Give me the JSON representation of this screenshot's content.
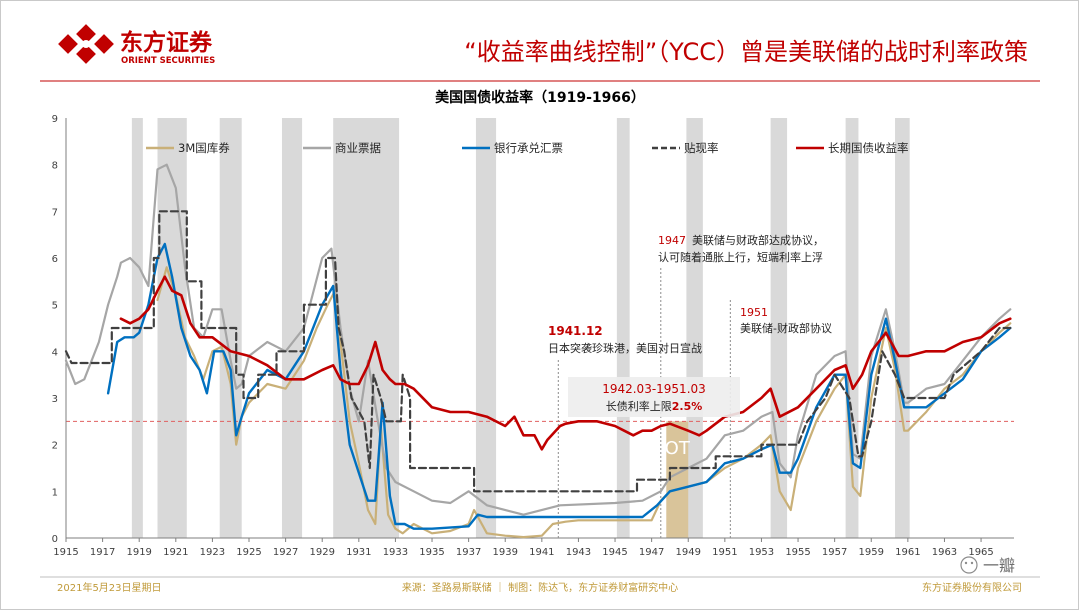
{
  "header": {
    "company_cn": "东方证券",
    "company_en": "ORIENT SECURITIES",
    "slide_title": "“收益率曲线控制”（YCC）曾是美联储的战时利率政策"
  },
  "footer": {
    "date": "2021年5月23日星期日",
    "source": "来源：圣路易斯联储 ｜ 制图：陈达飞，东方证券财富研究中心",
    "company": "东方证券股份有限公司",
    "watermark": "一瓣"
  },
  "colors": {
    "accent_red": "#c00000",
    "gold": "#c9b078",
    "gray": "#a6a6a6",
    "blue": "#0070c0",
    "dash": "#404040",
    "red": "#c00000",
    "recession": "#d9d9d9",
    "ot_fill": "#d9c49a"
  },
  "annotations": {
    "a1941_title": "1941.12",
    "a1941_text": "日本突袭珍珠港，美国对日宣战",
    "a1942_title": "1942.03-1951.03",
    "a1942_text_prefix": "长债利率上限",
    "a1942_cap": "2.5%",
    "a1947_year": "1947",
    "a1947_line1": "美联储与财政部达成协议，",
    "a1947_line2": "认可随着通胀上行，短端利率上浮",
    "a1951_year": "1951",
    "a1951_text": "美联储-财政部协议",
    "ot_label": "OT"
  },
  "chart_data": {
    "type": "line",
    "title": "美国国债收益率（1919-1966）",
    "xlabel": "",
    "ylabel": "",
    "xlim": [
      1915,
      1966.8
    ],
    "ylim": [
      0,
      9
    ],
    "x_ticks": [
      1915,
      1917,
      1919,
      1921,
      1923,
      1925,
      1927,
      1929,
      1931,
      1933,
      1935,
      1937,
      1939,
      1941,
      1943,
      1945,
      1947,
      1949,
      1951,
      1953,
      1955,
      1957,
      1959,
      1961,
      1963,
      1965
    ],
    "y_ticks": [
      0,
      1,
      2,
      3,
      4,
      5,
      6,
      7,
      8,
      9
    ],
    "reference_line": 2.5,
    "recessions": [
      [
        1918.6,
        1919.2
      ],
      [
        1920.0,
        1921.6
      ],
      [
        1923.4,
        1924.6
      ],
      [
        1926.8,
        1927.9
      ],
      [
        1929.6,
        1933.2
      ],
      [
        1937.4,
        1938.5
      ],
      [
        1945.1,
        1945.8
      ],
      [
        1948.9,
        1949.8
      ],
      [
        1953.5,
        1954.4
      ],
      [
        1957.6,
        1958.3
      ],
      [
        1960.3,
        1961.1
      ]
    ],
    "ot_band": [
      1947.8,
      1949.0
    ],
    "series": [
      {
        "name": "3M国库券",
        "key": "gold",
        "style": "solid",
        "x": [
          1920.0,
          1920.5,
          1921.0,
          1921.5,
          1922.0,
          1922.5,
          1923.0,
          1923.5,
          1924.0,
          1924.3,
          1924.6,
          1925.0,
          1926.0,
          1927.0,
          1928.0,
          1928.7,
          1929.3,
          1929.7,
          1930.0,
          1930.5,
          1931.0,
          1931.5,
          1931.9,
          1932.2,
          1932.6,
          1933.0,
          1933.4,
          1934.0,
          1935.0,
          1936.0,
          1937.0,
          1937.3,
          1938.0,
          1939.0,
          1940.0,
          1941.0,
          1941.6,
          1942.3,
          1943.0,
          1945.0,
          1947.0,
          1947.5,
          1948.0,
          1949.0,
          1950.0,
          1951.0,
          1952.0,
          1953.0,
          1953.5,
          1954.0,
          1954.6,
          1955.0,
          1956.0,
          1957.0,
          1957.6,
          1958.0,
          1958.4,
          1959.0,
          1959.8,
          1960.3,
          1960.8,
          1961.0,
          1962.0,
          1963.0,
          1964.0,
          1965.0,
          1966.0,
          1966.6
        ],
        "y": [
          5.1,
          5.8,
          5.2,
          4.3,
          3.9,
          3.4,
          4.0,
          4.1,
          3.3,
          2.0,
          2.6,
          2.9,
          3.3,
          3.2,
          3.8,
          4.5,
          5.0,
          5.3,
          4.2,
          2.5,
          1.6,
          0.6,
          0.3,
          2.4,
          0.5,
          0.2,
          0.1,
          0.3,
          0.1,
          0.15,
          0.3,
          0.6,
          0.1,
          0.05,
          0.02,
          0.05,
          0.3,
          0.35,
          0.38,
          0.38,
          0.38,
          0.8,
          1.0,
          1.1,
          1.2,
          1.5,
          1.7,
          2.0,
          2.2,
          1.0,
          0.6,
          1.5,
          2.5,
          3.2,
          3.5,
          1.1,
          0.9,
          3.0,
          4.5,
          3.6,
          2.3,
          2.3,
          2.7,
          3.2,
          3.5,
          4.0,
          4.4,
          4.6
        ]
      },
      {
        "name": "商业票据",
        "key": "gray",
        "style": "solid",
        "x": [
          1915.0,
          1915.5,
          1916.0,
          1916.8,
          1917.3,
          1917.8,
          1918.0,
          1918.5,
          1919.0,
          1919.5,
          1920.0,
          1920.5,
          1921.0,
          1921.5,
          1922.0,
          1922.5,
          1923.0,
          1923.5,
          1924.0,
          1924.3,
          1924.6,
          1925.0,
          1926.0,
          1927.0,
          1928.0,
          1929.0,
          1929.5,
          1930.0,
          1930.5,
          1931.0,
          1931.5,
          1932.0,
          1932.5,
          1933.0,
          1934.0,
          1935.0,
          1936.0,
          1937.0,
          1938.0,
          1940.0,
          1942.0,
          1945.0,
          1946.5,
          1947.5,
          1948.0,
          1949.0,
          1950.0,
          1951.0,
          1952.0,
          1953.0,
          1953.6,
          1954.0,
          1954.6,
          1955.0,
          1956.0,
          1957.0,
          1957.6,
          1958.0,
          1958.4,
          1959.0,
          1959.8,
          1960.3,
          1960.8,
          1961.0,
          1962.0,
          1963.0,
          1964.0,
          1965.0,
          1966.0,
          1966.6
        ],
        "y": [
          3.8,
          3.3,
          3.4,
          4.2,
          5.0,
          5.6,
          5.9,
          6.0,
          5.8,
          5.4,
          7.9,
          8.0,
          7.5,
          5.8,
          4.5,
          4.3,
          4.9,
          4.9,
          3.8,
          3.2,
          3.3,
          3.9,
          4.2,
          4.0,
          4.5,
          6.0,
          6.2,
          4.5,
          3.2,
          2.5,
          3.8,
          2.6,
          1.5,
          1.2,
          1.0,
          0.8,
          0.75,
          1.0,
          0.7,
          0.5,
          0.7,
          0.75,
          0.8,
          1.0,
          1.3,
          1.5,
          1.7,
          2.2,
          2.3,
          2.6,
          2.7,
          1.6,
          1.3,
          2.2,
          3.5,
          3.9,
          4.0,
          1.8,
          1.7,
          3.9,
          4.9,
          4.0,
          2.9,
          2.9,
          3.2,
          3.3,
          3.8,
          4.3,
          4.7,
          4.9
        ]
      },
      {
        "name": "银行承兑汇票",
        "key": "blue",
        "style": "solid",
        "x": [
          1917.3,
          1917.8,
          1918.2,
          1918.7,
          1919.0,
          1919.5,
          1920.0,
          1920.4,
          1920.8,
          1921.3,
          1921.8,
          1922.3,
          1922.7,
          1923.1,
          1923.6,
          1924.0,
          1924.3,
          1924.6,
          1925.0,
          1926.0,
          1927.0,
          1928.0,
          1929.0,
          1929.6,
          1930.0,
          1930.5,
          1931.0,
          1931.5,
          1931.9,
          1932.3,
          1932.7,
          1933.0,
          1933.5,
          1934.0,
          1935.0,
          1937.0,
          1937.5,
          1938.0,
          1940.0,
          1942.0,
          1946.5,
          1947.3,
          1948.0,
          1949.0,
          1950.0,
          1951.0,
          1952.0,
          1953.0,
          1953.6,
          1954.0,
          1954.6,
          1955.0,
          1956.0,
          1957.0,
          1957.6,
          1958.0,
          1958.4,
          1959.0,
          1959.8,
          1960.3,
          1960.8,
          1961.0,
          1962.0,
          1963.0,
          1964.0,
          1965.0,
          1966.0,
          1966.6
        ],
        "y": [
          3.1,
          4.2,
          4.3,
          4.3,
          4.4,
          5.0,
          6.0,
          6.3,
          5.6,
          4.5,
          3.9,
          3.6,
          3.1,
          4.0,
          4.0,
          3.6,
          2.2,
          2.6,
          3.1,
          3.6,
          3.4,
          4.0,
          5.0,
          5.4,
          3.6,
          2.0,
          1.4,
          0.8,
          0.8,
          2.9,
          0.9,
          0.3,
          0.3,
          0.2,
          0.2,
          0.25,
          0.5,
          0.45,
          0.45,
          0.45,
          0.45,
          0.7,
          1.0,
          1.1,
          1.2,
          1.6,
          1.7,
          1.9,
          2.0,
          1.4,
          1.4,
          1.7,
          2.8,
          3.5,
          3.5,
          1.6,
          1.5,
          3.5,
          4.7,
          3.8,
          2.8,
          2.8,
          2.8,
          3.1,
          3.4,
          4.0,
          4.3,
          4.5
        ]
      },
      {
        "name": "贴现率",
        "key": "dash",
        "style": "dashed",
        "x": [
          1915.0,
          1915.3,
          1917.5,
          1917.5,
          1919.8,
          1919.8,
          1920.1,
          1920.1,
          1921.6,
          1921.6,
          1922.4,
          1922.4,
          1924.3,
          1924.3,
          1924.7,
          1924.7,
          1925.5,
          1925.5,
          1926.5,
          1926.5,
          1928.0,
          1928.0,
          1929.2,
          1929.2,
          1929.7,
          1929.9,
          1930.2,
          1930.6,
          1931.3,
          1931.6,
          1931.8,
          1932.2,
          1932.5,
          1933.3,
          1933.4,
          1933.8,
          1933.8,
          1937.3,
          1937.3,
          1946.2,
          1946.2,
          1948.0,
          1948.0,
          1950.5,
          1950.5,
          1953.0,
          1953.0,
          1955.0,
          1955.5,
          1956.5,
          1957.0,
          1957.8,
          1958.3,
          1958.5,
          1959.0,
          1959.6,
          1960.3,
          1960.8,
          1963.0,
          1963.5,
          1965.0,
          1966.0,
          1966.6
        ],
        "y": [
          4.0,
          3.75,
          3.75,
          4.5,
          4.5,
          6.0,
          6.0,
          7.0,
          7.0,
          5.5,
          5.5,
          4.5,
          4.5,
          3.5,
          3.5,
          3.0,
          3.0,
          3.5,
          3.5,
          4.0,
          4.0,
          5.0,
          5.0,
          6.0,
          6.0,
          4.5,
          4.0,
          3.0,
          2.5,
          1.5,
          3.5,
          3.0,
          2.5,
          2.5,
          3.5,
          3.0,
          1.5,
          1.5,
          1.0,
          1.0,
          1.25,
          1.25,
          1.5,
          1.5,
          1.75,
          1.75,
          2.0,
          2.0,
          2.5,
          3.0,
          3.5,
          3.0,
          1.75,
          1.75,
          2.5,
          4.0,
          3.5,
          3.0,
          3.0,
          3.5,
          4.0,
          4.5,
          4.5
        ]
      },
      {
        "name": "长期国债收益率",
        "key": "red",
        "style": "solid",
        "x": [
          1918.0,
          1918.5,
          1919.0,
          1919.5,
          1920.0,
          1920.4,
          1920.8,
          1921.3,
          1921.8,
          1922.3,
          1923.0,
          1924.0,
          1925.0,
          1926.0,
          1927.0,
          1928.0,
          1929.0,
          1929.6,
          1930.0,
          1930.5,
          1931.0,
          1931.5,
          1931.9,
          1932.3,
          1932.7,
          1933.0,
          1933.5,
          1934.0,
          1935.0,
          1936.0,
          1937.0,
          1938.0,
          1939.0,
          1939.5,
          1940.0,
          1940.6,
          1941.0,
          1941.3,
          1942.0,
          1942.3,
          1943.0,
          1944.0,
          1945.0,
          1945.5,
          1946.0,
          1946.5,
          1947.0,
          1947.5,
          1948.0,
          1949.0,
          1949.6,
          1950.0,
          1951.0,
          1952.0,
          1953.0,
          1953.5,
          1954.0,
          1955.0,
          1956.0,
          1957.0,
          1957.6,
          1958.0,
          1958.5,
          1959.0,
          1959.8,
          1960.5,
          1961.0,
          1962.0,
          1963.0,
          1964.0,
          1965.0,
          1966.0,
          1966.6
        ],
        "y": [
          4.7,
          4.6,
          4.7,
          4.9,
          5.3,
          5.6,
          5.3,
          5.2,
          4.6,
          4.3,
          4.3,
          4.0,
          3.9,
          3.7,
          3.4,
          3.4,
          3.6,
          3.7,
          3.4,
          3.3,
          3.3,
          3.7,
          4.2,
          3.6,
          3.4,
          3.3,
          3.3,
          3.2,
          2.8,
          2.7,
          2.7,
          2.6,
          2.4,
          2.6,
          2.2,
          2.2,
          1.9,
          2.1,
          2.4,
          2.45,
          2.5,
          2.5,
          2.4,
          2.3,
          2.2,
          2.3,
          2.3,
          2.4,
          2.45,
          2.3,
          2.2,
          2.3,
          2.6,
          2.7,
          3.0,
          3.2,
          2.6,
          2.8,
          3.2,
          3.6,
          3.7,
          3.2,
          3.5,
          4.0,
          4.4,
          3.9,
          3.9,
          4.0,
          4.0,
          4.2,
          4.3,
          4.6,
          4.7
        ]
      }
    ]
  }
}
